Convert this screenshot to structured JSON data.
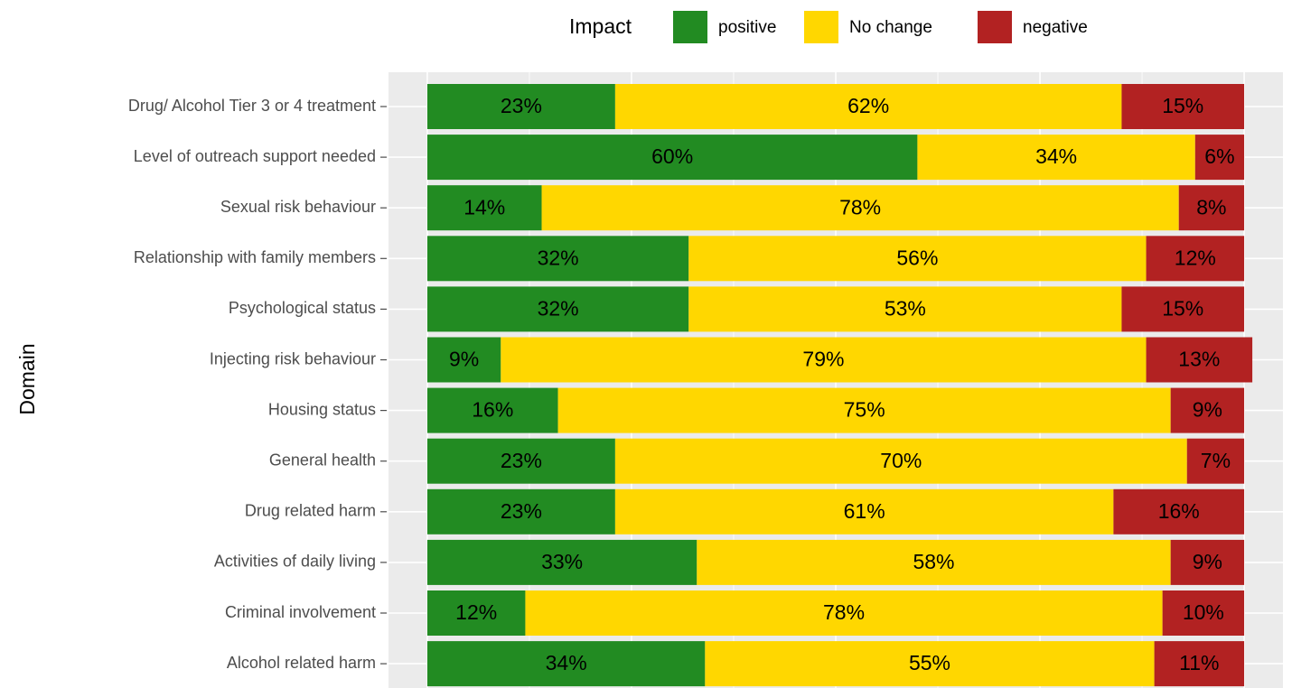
{
  "chart_data": {
    "type": "stacked-barh",
    "legend_title": "Impact",
    "ylabel": "Domain",
    "categories": [
      "Drug/ Alcohol Tier 3 or 4 treatment",
      "Level of outreach support needed",
      "Sexual risk behaviour",
      "Relationship with family members",
      "Psychological status",
      "Injecting risk behaviour",
      "Housing status",
      "General health",
      "Drug related harm",
      "Activities of daily living",
      "Criminal involvement",
      "Alcohol related harm"
    ],
    "series": [
      {
        "name": "positive",
        "color": "#228B22",
        "values": [
          23,
          60,
          14,
          32,
          32,
          9,
          16,
          23,
          23,
          33,
          12,
          34
        ],
        "value_labels": [
          "23%",
          "60%",
          "14%",
          "32%",
          "32%",
          "9%",
          "16%",
          "23%",
          "23%",
          "33%",
          "12%",
          "34%"
        ]
      },
      {
        "name": "No change",
        "color": "#FFD700",
        "values": [
          62,
          34,
          78,
          56,
          53,
          79,
          75,
          70,
          61,
          58,
          78,
          55
        ],
        "value_labels": [
          "62%",
          "34%",
          "78%",
          "56%",
          "53%",
          "79%",
          "75%",
          "70%",
          "61%",
          "58%",
          "78%",
          "55%"
        ]
      },
      {
        "name": "negative",
        "color": "#B22222",
        "values": [
          15,
          6,
          8,
          12,
          15,
          13,
          9,
          7,
          16,
          9,
          10,
          11
        ],
        "value_labels": [
          "15%",
          "6%",
          "8%",
          "12%",
          "15%",
          "13%",
          "9%",
          "7%",
          "16%",
          "9%",
          "10%",
          "11%"
        ]
      }
    ],
    "xlim": [
      -4.75,
      104.75
    ],
    "xticks": [
      0,
      25,
      50,
      75,
      100
    ],
    "grid": true
  }
}
